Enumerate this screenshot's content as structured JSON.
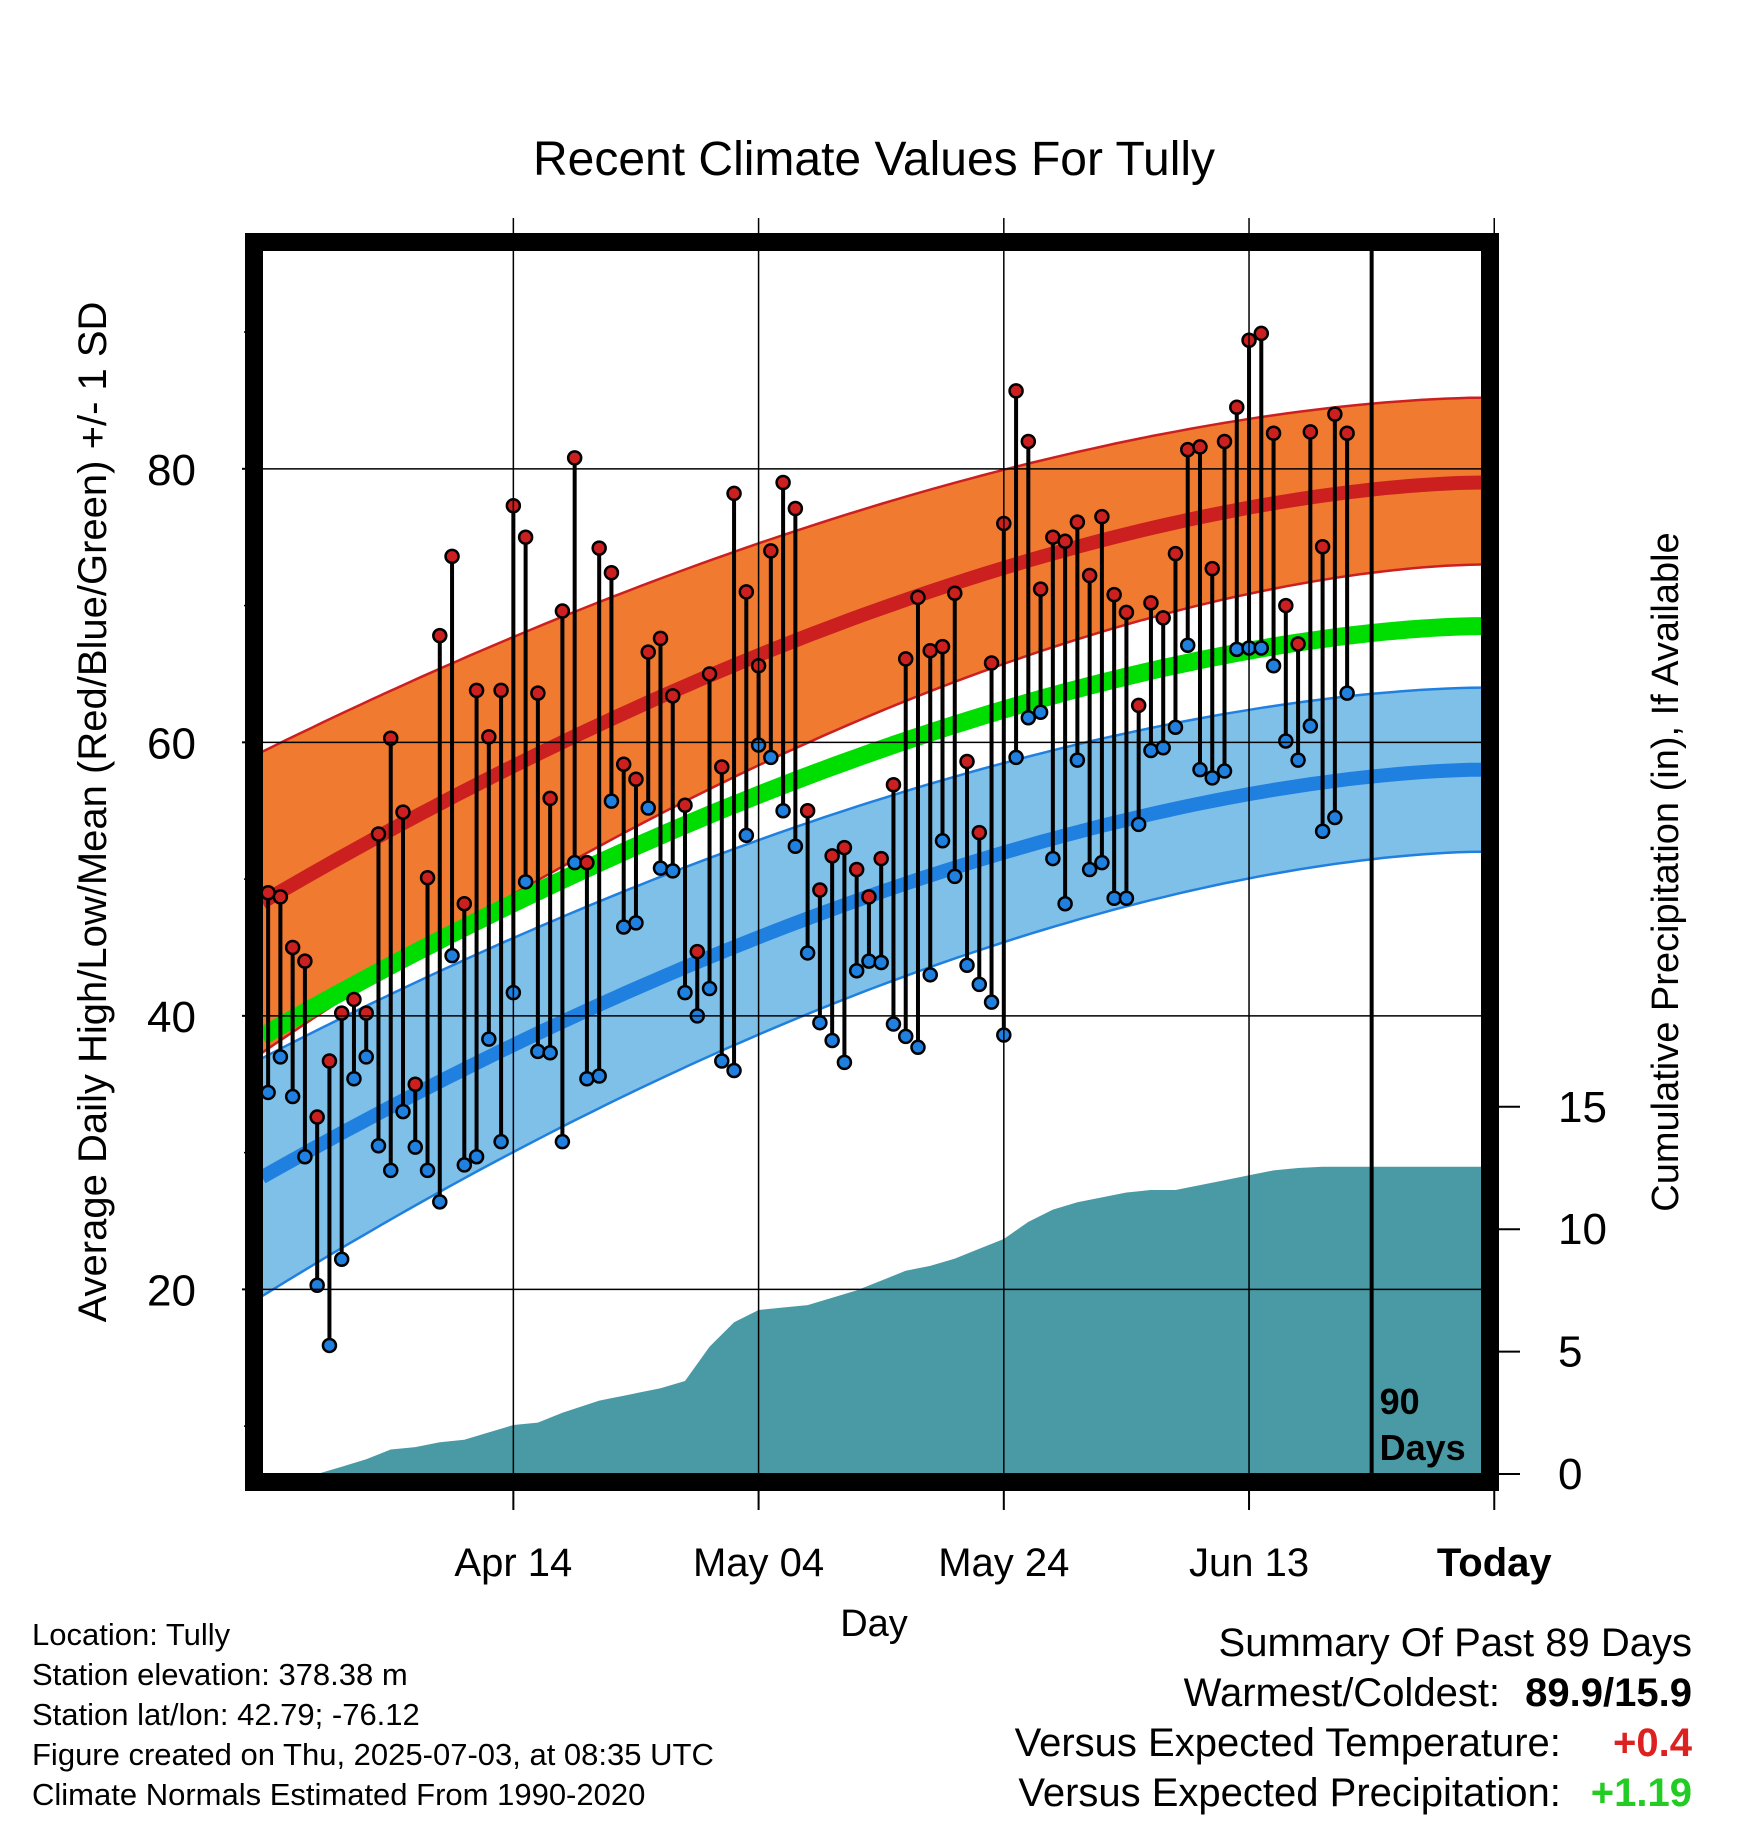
{
  "chart_data": {
    "type": "line",
    "title": "Recent Climate Values For Tully",
    "xlabel": "Day",
    "ylabel_left": "Average Daily High/Low/Mean (Red/Blue/Green) +/- 1 SD",
    "ylabel_right": "Cumulative Precipitation (in), If Available",
    "x_tick_labels": [
      "Apr 14",
      "May 04",
      "May 24",
      "Jun 13",
      "Today"
    ],
    "y_left_ticks": [
      20,
      40,
      60,
      80
    ],
    "y_right_ticks": [
      0,
      5,
      10,
      15
    ],
    "ylim_left": [
      6.5,
      96
    ],
    "ylim_right": [
      0,
      50
    ],
    "xlim_days": [
      -90.5,
      9
    ],
    "today_marker_label": [
      "90",
      "Days"
    ],
    "grid": true,
    "x_days": [
      -90,
      -89,
      -88,
      -87,
      -86,
      -85,
      -84,
      -83,
      -82,
      -81,
      -80,
      -79,
      -78,
      -77,
      -76,
      -75,
      -74,
      -73,
      -72,
      -71,
      -70,
      -69,
      -68,
      -67,
      -66,
      -65,
      -64,
      -63,
      -62,
      -61,
      -60,
      -59,
      -58,
      -57,
      -56,
      -55,
      -54,
      -53,
      -52,
      -51,
      -50,
      -49,
      -48,
      -47,
      -46,
      -45,
      -44,
      -43,
      -42,
      -41,
      -40,
      -39,
      -38,
      -37,
      -36,
      -35,
      -34,
      -33,
      -32,
      -31,
      -30,
      -29,
      -28,
      -27,
      -26,
      -25,
      -24,
      -23,
      -22,
      -21,
      -20,
      -19,
      -18,
      -17,
      -16,
      -15,
      -14,
      -13,
      -12,
      -11,
      -10,
      -9,
      -8,
      -7,
      -6,
      -5,
      -4,
      -3,
      -2
    ],
    "series": [
      {
        "name": "High",
        "color": "#cc2020",
        "values": [
          49,
          48.7,
          45,
          44,
          32.6,
          36.7,
          40.2,
          41.2,
          40.2,
          53.3,
          60.3,
          54.9,
          35,
          50.1,
          67.8,
          73.6,
          48.2,
          63.8,
          60.4,
          63.8,
          77.3,
          75,
          63.6,
          55.9,
          69.6,
          80.8,
          51.2,
          74.2,
          72.4,
          58.4,
          57.3,
          66.6,
          67.6,
          63.4,
          55.4,
          44.7,
          65,
          58.2,
          78.2,
          71,
          65.6,
          74,
          79,
          77.1,
          55,
          49.2,
          51.7,
          52.3,
          50.7,
          48.7,
          51.5,
          56.9,
          66.1,
          70.6,
          66.7,
          67,
          70.9,
          58.6,
          53.4,
          65.8,
          76,
          85.7,
          82,
          71.2,
          75,
          74.7,
          76.1,
          72.2,
          76.5,
          70.8,
          69.5,
          62.7,
          70.2,
          69.1,
          73.8,
          81.4,
          81.6,
          72.7,
          82,
          84.5,
          89.4,
          89.9,
          82.6,
          70,
          67.2,
          82.7,
          74.3,
          84,
          82.6
        ]
      },
      {
        "name": "Low",
        "color": "#2080e0",
        "values": [
          34.4,
          37,
          34.1,
          29.7,
          20.3,
          15.9,
          22.2,
          35.4,
          37,
          30.5,
          28.7,
          33,
          30.4,
          28.7,
          26.4,
          44.4,
          29.1,
          29.7,
          38.3,
          30.8,
          41.7,
          49.8,
          37.4,
          37.3,
          30.8,
          51.2,
          35.4,
          35.6,
          55.7,
          46.5,
          46.8,
          55.2,
          50.8,
          50.6,
          41.7,
          40,
          42,
          36.7,
          36,
          53.2,
          59.8,
          58.9,
          55,
          52.4,
          44.6,
          39.5,
          38.2,
          36.6,
          43.3,
          44,
          43.9,
          39.4,
          38.5,
          37.7,
          43,
          52.8,
          50.2,
          43.7,
          42.3,
          41,
          38.6,
          58.9,
          61.8,
          62.2,
          51.5,
          48.2,
          58.7,
          50.7,
          51.2,
          48.6,
          48.6,
          54,
          59.4,
          59.6,
          61.1,
          67.1,
          58,
          57.4,
          57.9,
          66.8,
          66.9,
          66.9,
          65.6,
          60.1,
          58.7,
          61.2,
          53.5,
          54.5,
          63.6
        ]
      },
      {
        "name": "Mean",
        "color": "#00dd00",
        "normal_start": 38.5,
        "normal_end": 68.5
      },
      {
        "name": "Precipitation",
        "color": "#4a9aa5",
        "final_value": 12.55
      }
    ],
    "normals": {
      "high_mean": [
        48.3,
        79
      ],
      "high_sd_band": [
        [
          37.3,
          59.3
        ],
        [
          73,
          85.2
        ]
      ],
      "low_mean": [
        28.2,
        58
      ],
      "low_sd_band": [
        [
          19.5,
          36.9
        ],
        [
          52,
          64
        ]
      ],
      "mean_line": [
        38.5,
        68.5
      ]
    },
    "precip_cumulative_days": [
      -90,
      -86,
      -84,
      -82,
      -80,
      -78,
      -76,
      -74,
      -72,
      -70,
      -68,
      -66,
      -63,
      -61,
      -58,
      -56,
      -54,
      -52,
      -50,
      -48,
      -46,
      -44,
      -42,
      -40,
      -38,
      -36,
      -34,
      -32,
      -30,
      -28,
      -26,
      -24,
      -22,
      -20,
      -18,
      -16,
      -14,
      -12,
      -10,
      -8,
      -6,
      -4,
      -2,
      0,
      2,
      4,
      8
    ],
    "precip_cumulative_values": [
      0,
      0,
      0.3,
      0.6,
      1,
      1.1,
      1.3,
      1.4,
      1.7,
      2,
      2.1,
      2.5,
      3,
      3.2,
      3.5,
      3.8,
      5.2,
      6.2,
      6.7,
      6.8,
      6.9,
      7.2,
      7.5,
      7.9,
      8.3,
      8.5,
      8.8,
      9.2,
      9.6,
      10.3,
      10.8,
      11.1,
      11.3,
      11.5,
      11.6,
      11.6,
      11.8,
      12,
      12.2,
      12.4,
      12.5,
      12.55,
      12.55,
      12.55,
      12.55,
      12.55,
      12.55
    ]
  },
  "footer": {
    "location": "Location: Tully",
    "elevation": "Station elevation: 378.38 m",
    "latlon": "Station lat/lon: 42.79; -76.12",
    "created": "Figure created on Thu, 2025-07-03, at 08:35 UTC",
    "normals": "Climate Normals Estimated From 1990-2020"
  },
  "summary": {
    "title": "Summary Of Past 89 Days",
    "warm_cold_label": "Warmest/Coldest:",
    "warm_cold_value": "89.9/15.9",
    "temp_label": "Versus Expected Temperature:",
    "temp_value": "+0.4",
    "temp_color": "#dd2020",
    "precip_label": "Versus Expected Precipitation:",
    "precip_value": "+1.19",
    "precip_color": "#22cc22"
  },
  "colors": {
    "high_band": "#f07a30",
    "high_line": "#cc2020",
    "low_band": "#7fc0e8",
    "low_line": "#2080e0",
    "mean_line": "#00dd00",
    "precip_fill": "#4a9aa5",
    "high_point": "#cc2020",
    "low_point": "#2080e0"
  }
}
